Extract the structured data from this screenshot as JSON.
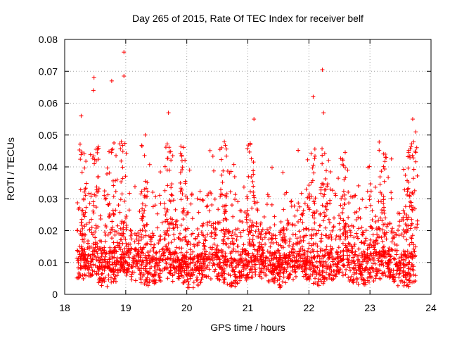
{
  "chart_data": {
    "type": "scatter",
    "title": "Day 265 of 2015, Rate Of TEC Index for receiver belf",
    "xlabel": "GPS time / hours",
    "ylabel": "ROTI / TECUs",
    "xlim": [
      18,
      24
    ],
    "ylim": [
      0,
      0.08
    ],
    "xticks": [
      18,
      19,
      20,
      21,
      22,
      23,
      24
    ],
    "yticks": [
      0,
      0.01,
      0.02,
      0.03,
      0.04,
      0.05,
      0.06,
      0.07,
      0.08
    ],
    "ytick_labels": [
      "0",
      "0.01",
      "0.02",
      "0.03",
      "0.04",
      "0.05",
      "0.06",
      "0.07",
      "0.08"
    ],
    "grid": true,
    "marker": "+",
    "series": [
      {
        "name": "ROTI",
        "color": "#ff0000",
        "note": "dense point cloud (~3000 points); representative sample plus notable peaks",
        "x_range": [
          18.2,
          23.75
        ],
        "bulk_y_range": [
          0.002,
          0.025
        ],
        "peaks": [
          {
            "x": 18.97,
            "y": 0.076
          },
          {
            "x": 22.22,
            "y": 0.0705
          },
          {
            "x": 18.97,
            "y": 0.0685
          },
          {
            "x": 18.48,
            "y": 0.068
          },
          {
            "x": 18.77,
            "y": 0.067
          },
          {
            "x": 18.47,
            "y": 0.064
          },
          {
            "x": 22.07,
            "y": 0.062
          },
          {
            "x": 18.27,
            "y": 0.056
          },
          {
            "x": 22.24,
            "y": 0.057
          },
          {
            "x": 23.7,
            "y": 0.055
          },
          {
            "x": 21.1,
            "y": 0.055
          },
          {
            "x": 19.7,
            "y": 0.057
          },
          {
            "x": 19.32,
            "y": 0.05
          },
          {
            "x": 20.57,
            "y": 0.046
          },
          {
            "x": 21.04,
            "y": 0.047
          },
          {
            "x": 23.75,
            "y": 0.051
          }
        ]
      }
    ]
  }
}
